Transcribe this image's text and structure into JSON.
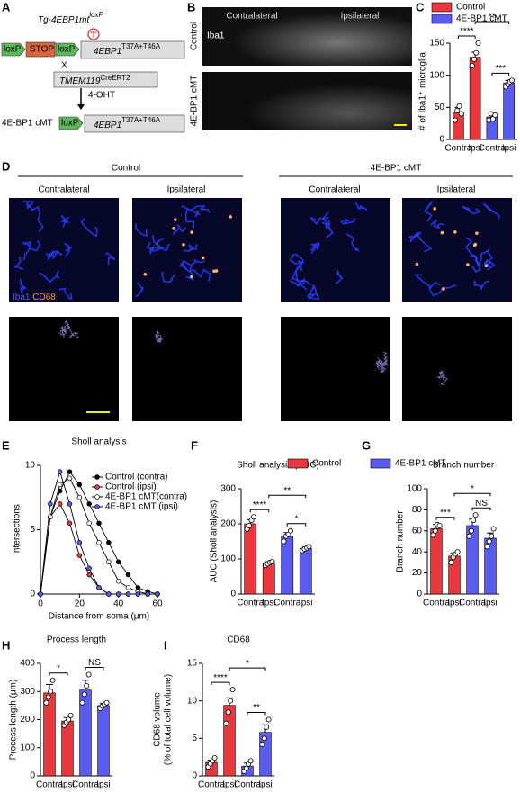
{
  "panels": {
    "labels": [
      "A",
      "B",
      "C",
      "D",
      "E",
      "F",
      "G",
      "H",
      "I"
    ],
    "a": {
      "transgene": "Tg-4EBP1mt",
      "transgene_sup": "loxP",
      "loxp": "loxP",
      "stop": "STOP",
      "gene": "4EBP1",
      "mutation": "T37A+T46A",
      "cross": "X",
      "driver": "TMEM119",
      "driver_sup": "CreERT2",
      "treatment": "4-OHT",
      "result": "4E-BP1 cMT"
    },
    "b": {
      "columns": [
        "Contralateral",
        "Ipsilateral"
      ],
      "stain": "Iba1",
      "rows": [
        "Control",
        "4E-BP1 cMT"
      ]
    },
    "d": {
      "groups": [
        "Control",
        "4E-BP1 cMT"
      ],
      "columns": [
        "Contralateral",
        "Ipsilateral",
        "Contralateral",
        "Ipsilateral"
      ],
      "stain1": "Iba1",
      "stain2": "CD68"
    }
  },
  "chart_data": [
    {
      "type": "bar",
      "ylabel": "# of Iba1⁺ microglia",
      "legend": [
        {
          "name": "Control",
          "color": "#e8383d"
        },
        {
          "name": "4E-BP1 cMT",
          "color": "#5b5bf0"
        }
      ],
      "categories": [
        "Contra",
        "Ipsi",
        "Contra",
        "Ipsi"
      ],
      "values": [
        42,
        128,
        35,
        88
      ],
      "errors": [
        8,
        8,
        5,
        4
      ],
      "points": [
        [
          30,
          45,
          52,
          40
        ],
        [
          115,
          125,
          135,
          150
        ],
        [
          30,
          40,
          32,
          38
        ],
        [
          82,
          86,
          90,
          92
        ]
      ],
      "bar_colors": [
        "#e8383d",
        "#e8383d",
        "#5b5bf0",
        "#5b5bf0"
      ],
      "ylim": [
        0,
        150
      ],
      "yticks": [
        0,
        50,
        100,
        150
      ],
      "annotations": [
        "****",
        "***",
        "**"
      ]
    },
    {
      "type": "line",
      "title": "Sholl analysis",
      "xlabel": "Distance from soma (μm)",
      "ylabel": "Intersections",
      "x": [
        0,
        5,
        10,
        15,
        20,
        25,
        30,
        35,
        40,
        45,
        50,
        55,
        60
      ],
      "xlim": [
        0,
        60
      ],
      "xticks": [
        0,
        20,
        40,
        60
      ],
      "ylim": [
        0,
        10
      ],
      "yticks": [
        0,
        5,
        10
      ],
      "series": [
        {
          "name": "Control (contra)",
          "color": "#000000",
          "values": [
            0,
            6,
            8,
            9.5,
            8.5,
            7,
            5.5,
            4,
            2.5,
            1.5,
            0.5,
            0.2,
            0
          ]
        },
        {
          "name": "Control (ipsi)",
          "color": "#e8383d",
          "values": [
            0,
            6,
            7,
            5.5,
            3,
            1.5,
            0.5,
            0,
            0,
            0,
            0,
            0,
            0
          ]
        },
        {
          "name": "4E-BP1 cMT(contra)",
          "color": "#ffffff",
          "values": [
            0,
            6,
            8.5,
            9,
            7.5,
            5.5,
            4,
            2.5,
            1,
            0.5,
            0.2,
            0,
            0
          ]
        },
        {
          "name": "4E-BP1 cMT (ipsi)",
          "color": "#5b5bf0",
          "values": [
            0,
            7,
            9.5,
            7,
            4,
            2,
            0.5,
            0,
            0,
            0,
            0,
            0,
            0
          ]
        }
      ]
    },
    {
      "type": "bar",
      "title": "Sholl analysis (AUC)",
      "ylabel": "AUC (Sholl analysis)",
      "legend": [
        {
          "name": "Control",
          "color": "#e8383d"
        },
        {
          "name": "4E-BP1 cMT",
          "color": "#5b5bf0"
        }
      ],
      "categories": [
        "Contra",
        "Ipsi",
        "Contra",
        "Ipsi"
      ],
      "values": [
        200,
        88,
        165,
        130
      ],
      "errors": [
        12,
        4,
        10,
        4
      ],
      "points": [
        [
          185,
          195,
          210,
          220
        ],
        [
          82,
          86,
          90,
          92
        ],
        [
          150,
          165,
          170,
          180
        ],
        [
          124,
          128,
          132,
          135
        ]
      ],
      "bar_colors": [
        "#e8383d",
        "#e8383d",
        "#5b5bf0",
        "#5b5bf0"
      ],
      "ylim": [
        0,
        300
      ],
      "yticks": [
        0,
        100,
        200,
        300
      ],
      "annotations": [
        "****",
        "*",
        "**"
      ]
    },
    {
      "type": "bar",
      "title": "Branch number",
      "ylabel": "Branch number",
      "categories": [
        "Contra",
        "Ipsi",
        "Contra",
        "Ipsi"
      ],
      "values": [
        62,
        36,
        65,
        53
      ],
      "errors": [
        4,
        3,
        6,
        5
      ],
      "points": [
        [
          56,
          60,
          66,
          65
        ],
        [
          30,
          35,
          38,
          40
        ],
        [
          55,
          60,
          70,
          75
        ],
        [
          45,
          50,
          55,
          62
        ]
      ],
      "bar_colors": [
        "#e8383d",
        "#e8383d",
        "#5b5bf0",
        "#5b5bf0"
      ],
      "ylim": [
        0,
        100
      ],
      "yticks": [
        0,
        20,
        40,
        60,
        80,
        100
      ],
      "annotations": [
        "***",
        "NS",
        "*"
      ]
    },
    {
      "type": "bar",
      "title": "Process length",
      "ylabel": "Process length (μm)",
      "categories": [
        "Contra",
        "Ipsi",
        "Contra",
        "Ipsi"
      ],
      "values": [
        295,
        195,
        305,
        250
      ],
      "errors": [
        30,
        12,
        35,
        8
      ],
      "points": [
        [
          260,
          280,
          300,
          340
        ],
        [
          180,
          190,
          200,
          215
        ],
        [
          260,
          290,
          320,
          360
        ],
        [
          240,
          248,
          255,
          260
        ]
      ],
      "bar_colors": [
        "#e8383d",
        "#e8383d",
        "#5b5bf0",
        "#5b5bf0"
      ],
      "ylim": [
        0,
        400
      ],
      "yticks": [
        0,
        100,
        200,
        300,
        400
      ],
      "annotations": [
        "*",
        "NS"
      ]
    },
    {
      "type": "bar",
      "title": "CD68",
      "ylabel": [
        "CD68 volume",
        "(% of total cell volume)"
      ],
      "categories": [
        "Contra",
        "Ipsi",
        "Contra",
        "Ipsi"
      ],
      "values": [
        1.8,
        9.4,
        1.3,
        5.8
      ],
      "errors": [
        0.3,
        1.0,
        0.4,
        1.0
      ],
      "points": [
        [
          1.2,
          1.6,
          2.0,
          2.4
        ],
        [
          7.0,
          8.5,
          10,
          11.5
        ],
        [
          0.6,
          1.0,
          1.6,
          2.0
        ],
        [
          4.2,
          5.0,
          6.5,
          7.5
        ]
      ],
      "bar_colors": [
        "#e8383d",
        "#e8383d",
        "#5b5bf0",
        "#5b5bf0"
      ],
      "ylim": [
        0,
        15
      ],
      "yticks": [
        0,
        5,
        10,
        15
      ],
      "annotations": [
        "****",
        "**",
        "*"
      ]
    }
  ]
}
